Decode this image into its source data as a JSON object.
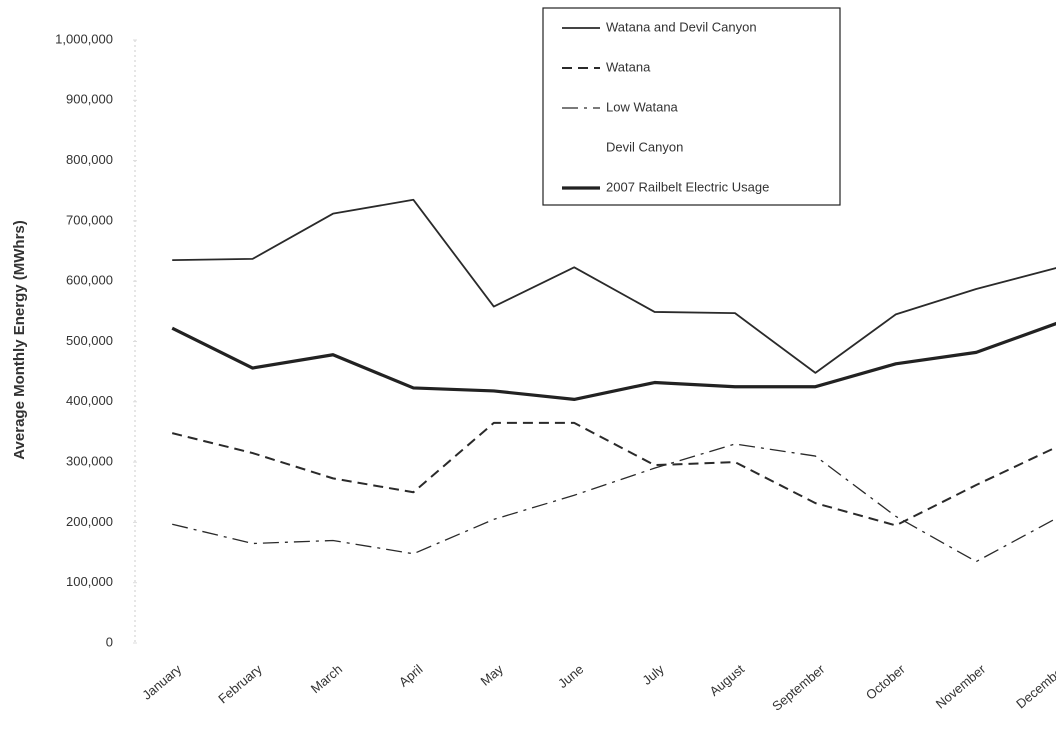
{
  "chart_data": {
    "type": "line",
    "y_label": "Average Monthly Energy (MWhrs)",
    "categories": [
      "January",
      "February",
      "March",
      "April",
      "May",
      "June",
      "July",
      "August",
      "September",
      "October",
      "November",
      "December"
    ],
    "series": [
      {
        "name": "Watana and Devil Canyon",
        "color": "#2a2a2a",
        "line_style": "solid",
        "line_width": 1.8,
        "values": [
          635000,
          637000,
          712000,
          735000,
          558000,
          623000,
          549000,
          547000,
          448000,
          545000,
          587000,
          622000
        ]
      },
      {
        "name": "Watana",
        "color": "#2a2a2a",
        "line_style": "dashed",
        "line_width": 2,
        "values": [
          348000,
          315000,
          273000,
          250000,
          365000,
          365000,
          295000,
          300000,
          232000,
          195000,
          262000,
          325000
        ]
      },
      {
        "name": "Low Watana",
        "color": "#2a2a2a",
        "line_style": "dashdot",
        "line_width": 1.3,
        "values": [
          197000,
          165000,
          170000,
          148000,
          205000,
          245000,
          290000,
          330000,
          310000,
          210000,
          135000,
          207000
        ]
      },
      {
        "name": "Devil Canyon",
        "color": "#ffffff",
        "line_style": "solid",
        "line_width": 1.5,
        "values": [
          null,
          null,
          null,
          null,
          null,
          null,
          null,
          null,
          null,
          null,
          null,
          null
        ]
      },
      {
        "name": "2007 Railbelt Electric Usage",
        "color": "#222222",
        "line_style": "solid",
        "line_width": 3.2,
        "values": [
          522000,
          456000,
          478000,
          423000,
          418000,
          404000,
          432000,
          425000,
          425000,
          463000,
          482000,
          530000
        ]
      }
    ],
    "ylim": [
      0,
      1000000
    ],
    "yticks": [
      0,
      {
        "value": 100000,
        "label": "100,000"
      },
      {
        "value": 200000,
        "label": "200,000"
      },
      {
        "value": 300000,
        "label": "300,000"
      },
      {
        "value": 400000,
        "label": "400,000"
      },
      {
        "value": 500000,
        "label": "500,000"
      },
      {
        "value": 600000,
        "label": "600,000"
      },
      {
        "value": 700000,
        "label": "700,000"
      },
      {
        "value": 800000,
        "label": "800,000"
      },
      {
        "value": 900000,
        "label": "900,000"
      },
      {
        "value": 1000000,
        "label": "1,000,000"
      }
    ],
    "grid": false,
    "legend": "top-right"
  }
}
